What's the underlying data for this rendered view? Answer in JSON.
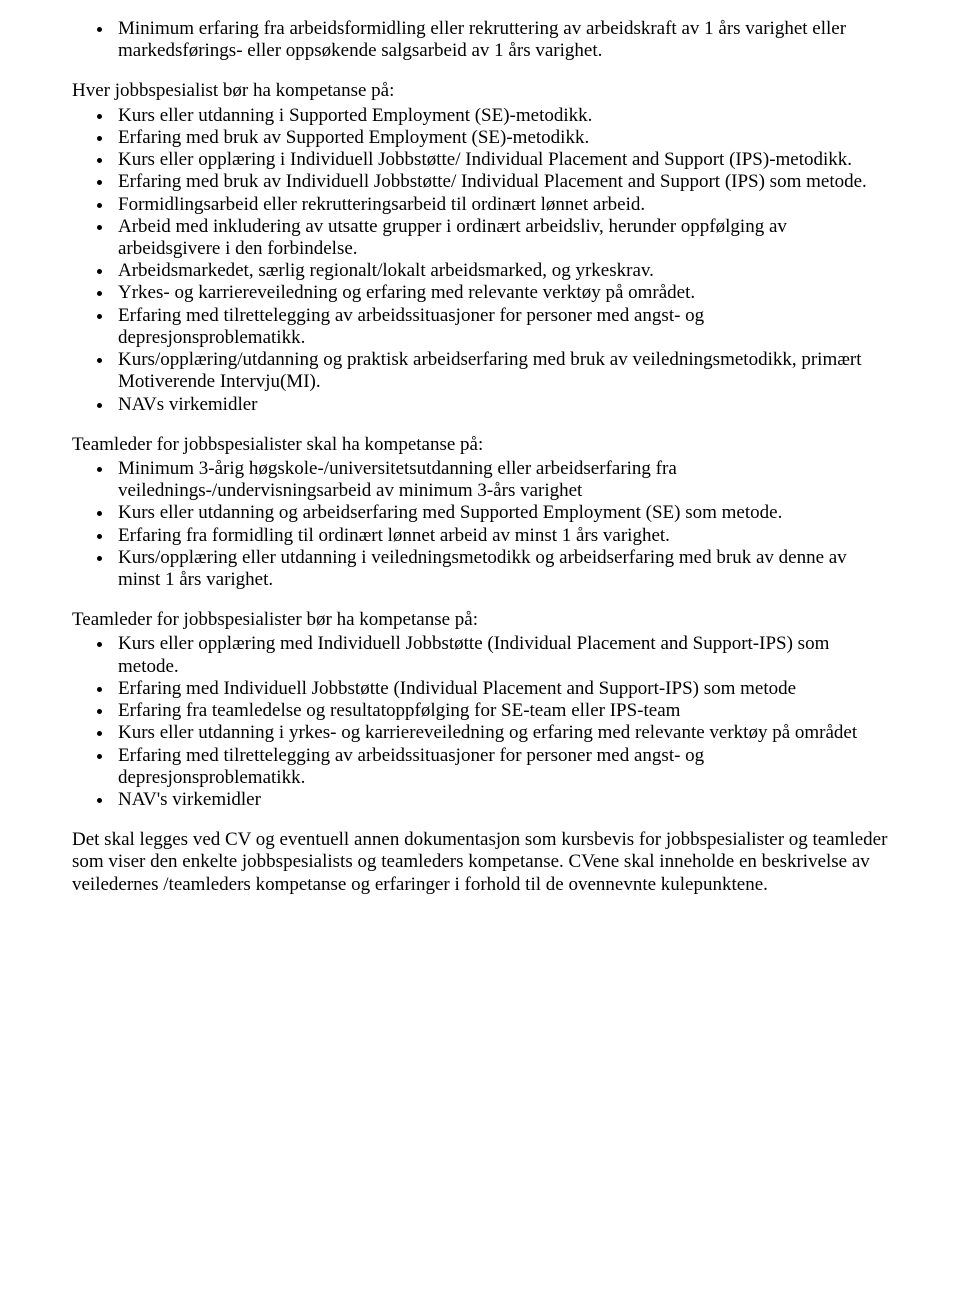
{
  "list1": {
    "items": [
      "Minimum erfaring fra arbeidsformidling eller rekruttering av arbeidskraft av 1 års varighet eller markedsførings- eller oppsøkende salgsarbeid av 1 års varighet."
    ]
  },
  "para1": "Hver jobbspesialist bør ha kompetanse på:",
  "list2": {
    "items": [
      "Kurs eller utdanning i Supported Employment (SE)-metodikk.",
      "Erfaring med bruk av Supported Employment (SE)-metodikk.",
      "Kurs eller opplæring i Individuell Jobbstøtte/ Individual Placement and Support (IPS)-metodikk.",
      "Erfaring med bruk av Individuell Jobbstøtte/ Individual Placement and Support (IPS) som metode.",
      "Formidlingsarbeid eller rekrutteringsarbeid til ordinært lønnet arbeid.",
      "Arbeid med inkludering av utsatte grupper i ordinært arbeidsliv, herunder oppfølging av arbeidsgivere i den forbindelse.",
      "Arbeidsmarkedet, særlig regionalt/lokalt arbeidsmarked, og yrkeskrav.",
      "Yrkes- og karriereveiledning og erfaring med relevante verktøy på området.",
      "Erfaring med tilrettelegging av arbeidssituasjoner for personer med angst- og depresjonsproblematikk.",
      "Kurs/opplæring/utdanning og praktisk arbeidserfaring med bruk av veiledningsmetodikk, primært Motiverende Intervju(MI).",
      "NAVs virkemidler"
    ]
  },
  "para2": "Teamleder for jobbspesialister skal ha kompetanse på:",
  "list3": {
    "items": [
      "Minimum 3-årig høgskole-/universitetsutdanning eller arbeidserfaring fra veilednings-/undervisningsarbeid av minimum 3-års varighet",
      "Kurs eller utdanning og arbeidserfaring med Supported Employment (SE) som metode.",
      "Erfaring fra formidling til ordinært lønnet arbeid av minst 1 års varighet.",
      "Kurs/opplæring eller utdanning i veiledningsmetodikk og arbeidserfaring med bruk av denne av minst 1 års varighet."
    ]
  },
  "para3": "Teamleder for jobbspesialister bør ha kompetanse på:",
  "list4": {
    "items": [
      "Kurs eller opplæring med Individuell Jobbstøtte (Individual Placement and Support-IPS) som metode.",
      "Erfaring med Individuell Jobbstøtte (Individual Placement and Support-IPS) som metode",
      "Erfaring fra teamledelse og resultatoppfølging for SE-team eller IPS-team",
      "Kurs eller utdanning i yrkes- og karriereveiledning og erfaring med relevante verktøy på området",
      "Erfaring med tilrettelegging av arbeidssituasjoner for personer med angst- og depresjonsproblematikk.",
      "NAV's virkemidler"
    ]
  },
  "para4": "Det skal legges ved CV og eventuell annen dokumentasjon som kursbevis for jobbspesialister og teamleder som viser den enkelte jobbspesialists og teamleders kompetanse. CVene skal inneholde en beskrivelse av veiledernes /teamleders kompetanse og erfaringer i forhold til de ovennevnte kulepunktene."
}
